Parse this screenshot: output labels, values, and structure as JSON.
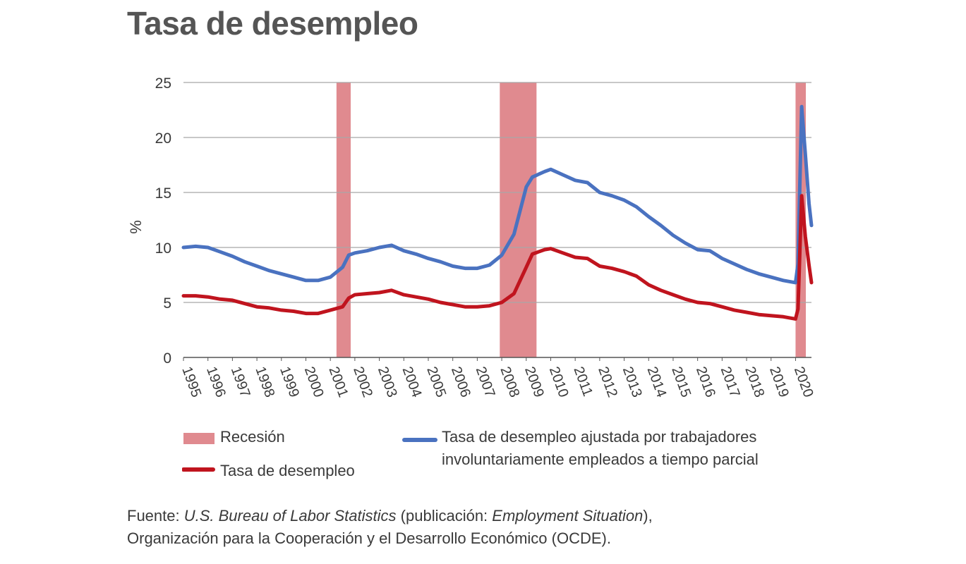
{
  "title": "Tasa de desempleo",
  "chart_data": {
    "type": "line",
    "ylabel": "%",
    "ylim": [
      0,
      25
    ],
    "yticks": [
      0,
      5,
      10,
      15,
      20,
      25
    ],
    "xlim": [
      1995,
      2020.65
    ],
    "xticks": [
      "1995",
      "1996",
      "1997",
      "1998",
      "1999",
      "2000",
      "2001",
      "2002",
      "2003",
      "2004",
      "2005",
      "2006",
      "2007",
      "2008",
      "2009",
      "2010",
      "2011",
      "2012",
      "2013",
      "2014",
      "2015",
      "2016",
      "2017",
      "2018",
      "2019",
      "2020"
    ],
    "grid": "horizontal",
    "recessions": [
      [
        2001.25,
        2001.83
      ],
      [
        2007.92,
        2009.42
      ],
      [
        2020.0,
        2020.42
      ]
    ],
    "series": [
      {
        "name": "Tasa de desempleo ajustada por trabajadores involuntariamente empleados a tiempo parcial",
        "color": "#4a72c0",
        "points": [
          [
            1995,
            10.0
          ],
          [
            1995.5,
            10.1
          ],
          [
            1996,
            10.0
          ],
          [
            1996.5,
            9.6
          ],
          [
            1997,
            9.2
          ],
          [
            1997.5,
            8.7
          ],
          [
            1998,
            8.3
          ],
          [
            1998.5,
            7.9
          ],
          [
            1999,
            7.6
          ],
          [
            1999.5,
            7.3
          ],
          [
            2000,
            7.0
          ],
          [
            2000.5,
            7.0
          ],
          [
            2001,
            7.3
          ],
          [
            2001.5,
            8.2
          ],
          [
            2001.75,
            9.3
          ],
          [
            2002,
            9.5
          ],
          [
            2002.5,
            9.7
          ],
          [
            2003,
            10.0
          ],
          [
            2003.5,
            10.2
          ],
          [
            2004,
            9.7
          ],
          [
            2004.5,
            9.4
          ],
          [
            2005,
            9.0
          ],
          [
            2005.5,
            8.7
          ],
          [
            2006,
            8.3
          ],
          [
            2006.5,
            8.1
          ],
          [
            2007,
            8.1
          ],
          [
            2007.5,
            8.4
          ],
          [
            2008,
            9.3
          ],
          [
            2008.5,
            11.2
          ],
          [
            2009,
            15.5
          ],
          [
            2009.25,
            16.4
          ],
          [
            2009.75,
            16.9
          ],
          [
            2010,
            17.1
          ],
          [
            2010.5,
            16.6
          ],
          [
            2011,
            16.1
          ],
          [
            2011.5,
            15.9
          ],
          [
            2012,
            15.0
          ],
          [
            2012.5,
            14.7
          ],
          [
            2013,
            14.3
          ],
          [
            2013.5,
            13.7
          ],
          [
            2014,
            12.8
          ],
          [
            2014.5,
            12.0
          ],
          [
            2015,
            11.1
          ],
          [
            2015.5,
            10.4
          ],
          [
            2016,
            9.8
          ],
          [
            2016.5,
            9.7
          ],
          [
            2017,
            9.0
          ],
          [
            2017.5,
            8.5
          ],
          [
            2018,
            8.0
          ],
          [
            2018.5,
            7.6
          ],
          [
            2019,
            7.3
          ],
          [
            2019.5,
            7.0
          ],
          [
            2020,
            6.8
          ],
          [
            2020.1,
            8.5
          ],
          [
            2020.25,
            22.8
          ],
          [
            2020.4,
            18.5
          ],
          [
            2020.55,
            14.0
          ],
          [
            2020.65,
            12.0
          ]
        ]
      },
      {
        "name": "Tasa de desempleo",
        "color": "#c0141e",
        "points": [
          [
            1995,
            5.6
          ],
          [
            1995.5,
            5.6
          ],
          [
            1996,
            5.5
          ],
          [
            1996.5,
            5.3
          ],
          [
            1997,
            5.2
          ],
          [
            1997.5,
            4.9
          ],
          [
            1998,
            4.6
          ],
          [
            1998.5,
            4.5
          ],
          [
            1999,
            4.3
          ],
          [
            1999.5,
            4.2
          ],
          [
            2000,
            4.0
          ],
          [
            2000.5,
            4.0
          ],
          [
            2001,
            4.3
          ],
          [
            2001.5,
            4.6
          ],
          [
            2001.75,
            5.4
          ],
          [
            2002,
            5.7
          ],
          [
            2002.5,
            5.8
          ],
          [
            2003,
            5.9
          ],
          [
            2003.5,
            6.1
          ],
          [
            2004,
            5.7
          ],
          [
            2004.5,
            5.5
          ],
          [
            2005,
            5.3
          ],
          [
            2005.5,
            5.0
          ],
          [
            2006,
            4.8
          ],
          [
            2006.5,
            4.6
          ],
          [
            2007,
            4.6
          ],
          [
            2007.5,
            4.7
          ],
          [
            2008,
            5.0
          ],
          [
            2008.5,
            5.8
          ],
          [
            2009,
            8.2
          ],
          [
            2009.25,
            9.4
          ],
          [
            2009.75,
            9.8
          ],
          [
            2010,
            9.9
          ],
          [
            2010.5,
            9.5
          ],
          [
            2011,
            9.1
          ],
          [
            2011.5,
            9.0
          ],
          [
            2012,
            8.3
          ],
          [
            2012.5,
            8.1
          ],
          [
            2013,
            7.8
          ],
          [
            2013.5,
            7.4
          ],
          [
            2014,
            6.6
          ],
          [
            2014.5,
            6.1
          ],
          [
            2015,
            5.7
          ],
          [
            2015.5,
            5.3
          ],
          [
            2016,
            5.0
          ],
          [
            2016.5,
            4.9
          ],
          [
            2017,
            4.6
          ],
          [
            2017.5,
            4.3
          ],
          [
            2018,
            4.1
          ],
          [
            2018.5,
            3.9
          ],
          [
            2019,
            3.8
          ],
          [
            2019.5,
            3.7
          ],
          [
            2020,
            3.5
          ],
          [
            2020.1,
            4.4
          ],
          [
            2020.25,
            14.7
          ],
          [
            2020.4,
            11.0
          ],
          [
            2020.55,
            8.4
          ],
          [
            2020.65,
            6.8
          ]
        ]
      }
    ]
  },
  "legend": {
    "recession_label": "Recesión",
    "recession_color": "#e08a8f",
    "u3_label": "Tasa de desempleo",
    "u6_label_line1": "Tasa de desempleo ajustada por trabajadores",
    "u6_label_line2": "involuntariamente empleados a tiempo parcial"
  },
  "source": {
    "prefix": "Fuente: ",
    "org1": "U.S. Bureau of Labor Statistics",
    "mid": " (publicación: ",
    "publication": "Employment Situation",
    "suffix": "),",
    "line2": "Organización para la Cooperación y el Desarrollo Económico (OCDE)."
  }
}
